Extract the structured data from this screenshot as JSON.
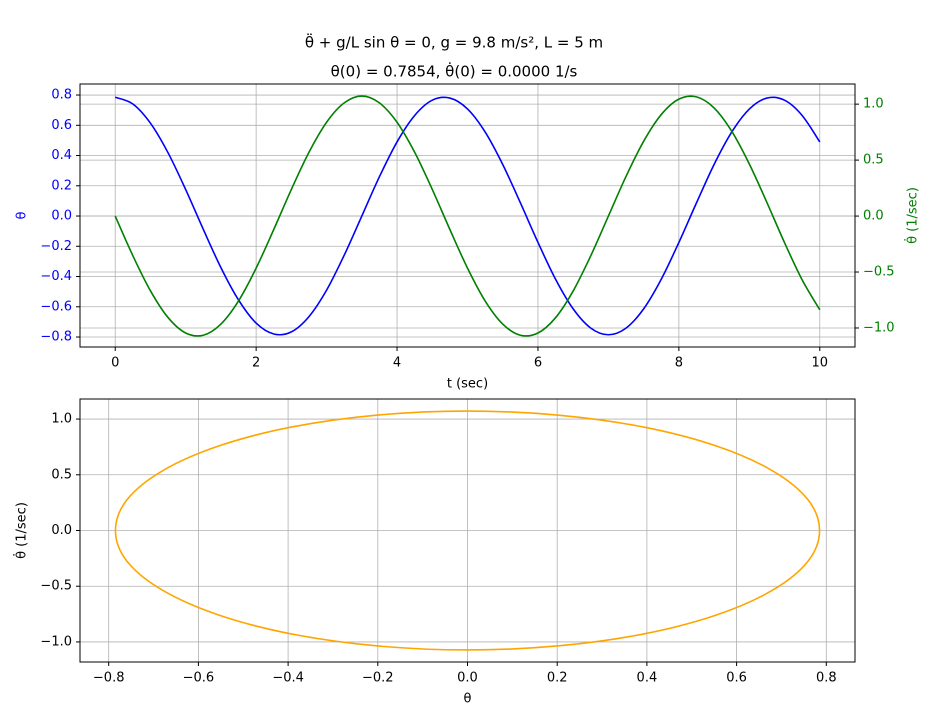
{
  "chart_data": [
    {
      "type": "line",
      "title": "θ̈ + g/L sin θ = 0,    g = 9.8 m/s²,    L = 5 m",
      "subtitle": "θ(0) = 0.7854,    θ̇(0) = 0.0000 1/s",
      "x_label": "t (sec)",
      "y_label": "θ",
      "y2_label": "θ̇ (1/sec)",
      "x": [
        0,
        0.25,
        0.5,
        0.75,
        1,
        1.25,
        1.5,
        1.75,
        2,
        2.25,
        2.5,
        2.75,
        3,
        3.25,
        3.5,
        3.75,
        4,
        4.25,
        4.5,
        4.75,
        5,
        5.25,
        5.5,
        5.75,
        6,
        6.25,
        6.5,
        6.75,
        7,
        7.25,
        7.5,
        7.75,
        8,
        8.25,
        8.5,
        8.75,
        9,
        9.25,
        9.5,
        9.75,
        10
      ],
      "series": [
        {
          "name": "θ",
          "color": "#0000ff",
          "axis": "y",
          "values": [
            0.785,
            0.741,
            0.614,
            0.418,
            0.175,
            -0.088,
            -0.341,
            -0.555,
            -0.708,
            -0.78,
            -0.766,
            -0.665,
            -0.49,
            -0.259,
            0.0,
            0.26,
            0.49,
            0.665,
            0.766,
            0.78,
            0.708,
            0.556,
            0.341,
            0.088,
            -0.174,
            -0.418,
            -0.614,
            -0.741,
            -0.785,
            -0.741,
            -0.614,
            -0.418,
            -0.175,
            0.087,
            0.341,
            0.555,
            0.707,
            0.78,
            0.766,
            0.665,
            0.49
          ]
        },
        {
          "name": "θ̇",
          "color": "#008000",
          "axis": "y2",
          "values": [
            0,
            -0.354,
            -0.668,
            -0.907,
            -1.045,
            -1.065,
            -0.965,
            -0.758,
            -0.465,
            -0.12,
            0.238,
            0.57,
            0.838,
            1.011,
            1.072,
            1.011,
            0.838,
            0.57,
            0.238,
            -0.12,
            -0.465,
            -0.758,
            -0.965,
            -1.065,
            -1.045,
            -0.908,
            -0.669,
            -0.354,
            0.0,
            0.354,
            0.668,
            0.907,
            1.045,
            1.065,
            0.966,
            0.758,
            0.465,
            0.121,
            -0.238,
            -0.57,
            -0.837
          ]
        }
      ],
      "xlim": [
        -0.5,
        10.5
      ],
      "xticks": [
        0,
        2,
        4,
        6,
        8,
        10
      ],
      "ylim": [
        -0.866,
        0.873
      ],
      "yticks": [
        {
          "value": -0.8,
          "label": "−0.8"
        },
        {
          "value": -0.6,
          "label": "−0.6"
        },
        {
          "value": -0.4,
          "label": "−0.4"
        },
        {
          "value": -0.2,
          "label": "−0.2"
        },
        {
          "value": 0,
          "label": "0.0"
        },
        0.2,
        0.4,
        0.6,
        0.8
      ],
      "y2lim": [
        -1.17,
        1.18
      ],
      "y2ticks": [
        {
          "value": -1,
          "label": "−1.0"
        },
        {
          "value": -0.5,
          "label": "−0.5"
        },
        {
          "value": 0,
          "label": "0.0"
        },
        0.5,
        {
          "value": 1,
          "label": "1.0"
        }
      ],
      "grid": true
    },
    {
      "type": "line",
      "x_label": "θ",
      "y_label": "θ̇ (1/sec)",
      "x": [
        0.785,
        0.759,
        0.68,
        0.555,
        0.393,
        0.203,
        0,
        -0.203,
        -0.393,
        -0.555,
        -0.68,
        -0.759,
        -0.785,
        -0.759,
        -0.68,
        -0.555,
        -0.393,
        -0.203,
        0,
        0.203,
        0.393,
        0.555,
        0.68,
        0.759
      ],
      "series": [
        {
          "color": "#ffa500",
          "values": [
            0,
            -0.277,
            -0.536,
            -0.758,
            -0.928,
            -1.035,
            -1.072,
            -1.035,
            -0.928,
            -0.758,
            -0.536,
            -0.277,
            0,
            0.277,
            0.536,
            0.758,
            0.928,
            1.035,
            1.072,
            1.035,
            0.928,
            0.758,
            0.536,
            0.277
          ]
        }
      ],
      "xlim": [
        -0.864,
        0.864
      ],
      "xticks": [
        {
          "value": -0.8,
          "label": "−0.8"
        },
        {
          "value": -0.6,
          "label": "−0.6"
        },
        {
          "value": -0.4,
          "label": "−0.4"
        },
        {
          "value": -0.2,
          "label": "−0.2"
        },
        {
          "value": 0,
          "label": "0.0"
        },
        0.2,
        0.4,
        0.6,
        0.8
      ],
      "ylim": [
        -1.18,
        1.18
      ],
      "yticks": [
        {
          "value": -1,
          "label": "−1.0"
        },
        {
          "value": -0.5,
          "label": "−0.5"
        },
        {
          "value": 0,
          "label": "0.0"
        },
        0.5,
        {
          "value": 1,
          "label": "1.0"
        }
      ],
      "grid": true
    }
  ]
}
